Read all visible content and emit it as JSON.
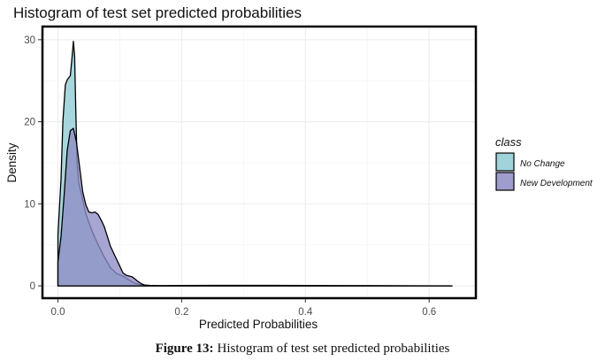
{
  "chart_data": {
    "type": "area",
    "title": "Histogram of test set predicted probabilities",
    "xlabel": "Predicted Probabilities",
    "ylabel": "Density",
    "xlim": [
      -0.025,
      0.6755
    ],
    "ylim": [
      -1.5,
      31.6
    ],
    "xticks": [
      0.0,
      0.2,
      0.4,
      0.6
    ],
    "xtick_labels": [
      "0.0",
      "0.2",
      "0.4",
      "0.6"
    ],
    "yticks": [
      0,
      10,
      20,
      30
    ],
    "ytick_labels": [
      "0",
      "10",
      "20",
      "30"
    ],
    "grid": true,
    "legend": {
      "title": "class",
      "position": "right"
    },
    "series": [
      {
        "name": "No Change",
        "color": "#8fcbd3",
        "x": [
          0.0,
          0.005,
          0.008,
          0.012,
          0.015,
          0.02,
          0.023,
          0.025,
          0.027,
          0.029,
          0.031,
          0.034,
          0.038,
          0.045,
          0.055,
          0.065,
          0.075,
          0.085,
          0.095,
          0.105,
          0.115,
          0.125,
          0.135,
          0.145,
          0.16,
          0.2,
          0.3,
          0.4,
          0.5,
          0.6,
          0.637
        ],
        "y": [
          6.2,
          13.0,
          20.0,
          24.5,
          25.1,
          25.6,
          28.0,
          29.8,
          28.0,
          21.0,
          15.0,
          12.4,
          11.2,
          8.8,
          6.7,
          5.0,
          3.5,
          2.2,
          1.5,
          1.2,
          0.7,
          0.3,
          0.1,
          0.05,
          0.02,
          0.01,
          0.01,
          0.01,
          0.0,
          0.0,
          0.0
        ]
      },
      {
        "name": "New Development",
        "color": "#8e8cc4",
        "x": [
          0.0,
          0.005,
          0.01,
          0.015,
          0.02,
          0.025,
          0.03,
          0.035,
          0.04,
          0.045,
          0.05,
          0.055,
          0.06,
          0.065,
          0.07,
          0.075,
          0.08,
          0.085,
          0.09,
          0.095,
          0.1,
          0.105,
          0.11,
          0.115,
          0.12,
          0.125,
          0.13,
          0.135,
          0.14,
          0.15,
          0.17,
          0.2,
          0.25,
          0.3,
          0.35,
          0.4,
          0.45,
          0.5,
          0.55,
          0.6,
          0.637
        ],
        "y": [
          2.9,
          6.0,
          11.0,
          16.5,
          18.9,
          19.2,
          17.5,
          14.5,
          11.5,
          9.9,
          9.0,
          8.9,
          9.0,
          8.7,
          8.0,
          7.2,
          6.0,
          4.8,
          4.0,
          3.2,
          2.4,
          1.6,
          1.3,
          1.2,
          1.1,
          0.8,
          0.5,
          0.25,
          0.1,
          0.05,
          0.04,
          0.05,
          0.06,
          0.06,
          0.06,
          0.05,
          0.04,
          0.03,
          0.02,
          0.01,
          0.0
        ]
      }
    ]
  },
  "figure_caption": {
    "label": "Figure 13:",
    "text": "Histogram of test set predicted probabilities"
  }
}
